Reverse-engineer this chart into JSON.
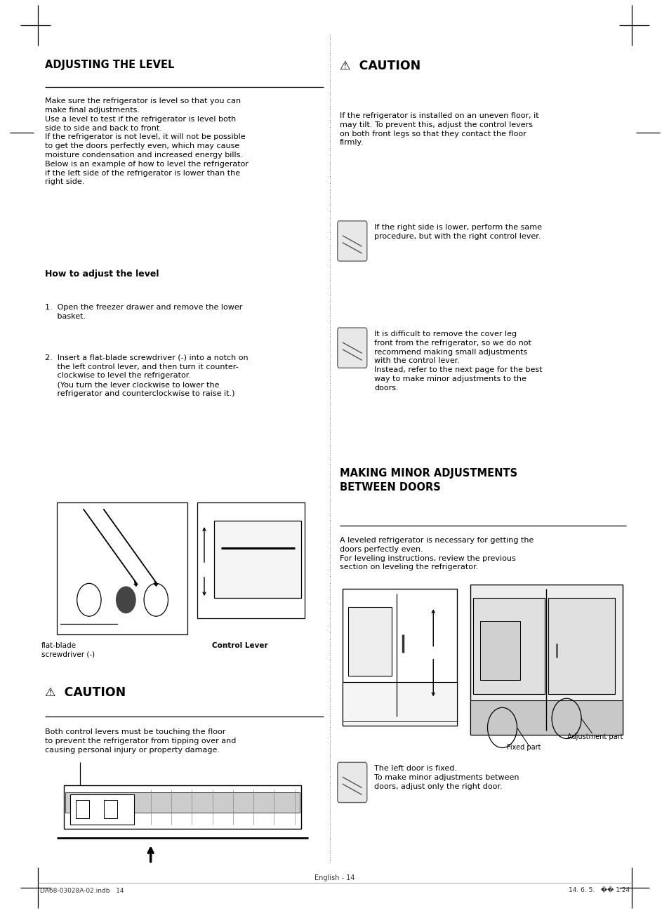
{
  "bg_color": "#ffffff",
  "page_width": 9.54,
  "page_height": 13.01,
  "section1_title": "ADJUSTING THE LEVEL",
  "section1_body": "Make sure the refrigerator is level so that you can\nmake final adjustments.\nUse a level to test if the refrigerator is level both\nside to side and back to front.\nIf the refrigerator is not level, it will not be possible\nto get the doors perfectly even, which may cause\nmoisture condensation and increased energy bills.\nBelow is an example of how to level the refrigerator\nif the left side of the refrigerator is lower than the\nright side.",
  "subsection_title": "How to adjust the level",
  "step1": "1.  Open the freezer drawer and remove the lower\n     basket.",
  "step2": "2.  Insert a flat-blade screwdriver (-) into a notch on\n     the left control lever, and then turn it counter-\n     clockwise to level the refrigerator.\n     (You turn the lever clockwise to lower the\n     refrigerator and counterclockwise to raise it.)",
  "label1": "flat-blade\nscrewdriver (-)",
  "label2": "Control Lever",
  "caution1_title": "⚠  CAUTION",
  "caution1_body": "Both control levers must be touching the floor\nto prevent the refrigerator from tipping over and\ncausing personal injury or property damage.",
  "caution2_title": "⚠  CAUTION",
  "caution2_body": "If the refrigerator is installed on an uneven floor, it\nmay tilt. To prevent this, adjust the control levers\non both front legs so that they contact the floor\nfirmly.",
  "note1": "If the right side is lower, perform the same\nprocedure, but with the right control lever.",
  "note2": "It is difficult to remove the cover leg\nfront from the refrigerator, so we do not\nrecommend making small adjustments\nwith the control lever.\nInstead, refer to the next page for the best\nway to make minor adjustments to the\ndoors.",
  "section2_title": "MAKING MINOR ADJUSTMENTS\nBETWEEN DOORS",
  "section2_body": "A leveled refrigerator is necessary for getting the\ndoors perfectly even.\nFor leveling instructions, review the previous\nsection on leveling the refrigerator.",
  "note3": "The left door is fixed.\nTo make minor adjustments between\ndoors, adjust only the right door.",
  "label3": "Fixed part",
  "label4": "Adjustment part",
  "footer_center": "English - 14",
  "footer_left": "DA68-03028A-02.indb   14",
  "footer_right": "14. 6. 5.   �� 1:24",
  "title_fontsize": 10.5,
  "body_fontsize": 8.0,
  "subsection_fontsize": 9.0,
  "caution_title_fontsize": 12.5,
  "section2_title_fontsize": 10.5,
  "note_fontsize": 8.0,
  "footer_fontsize": 7.0
}
